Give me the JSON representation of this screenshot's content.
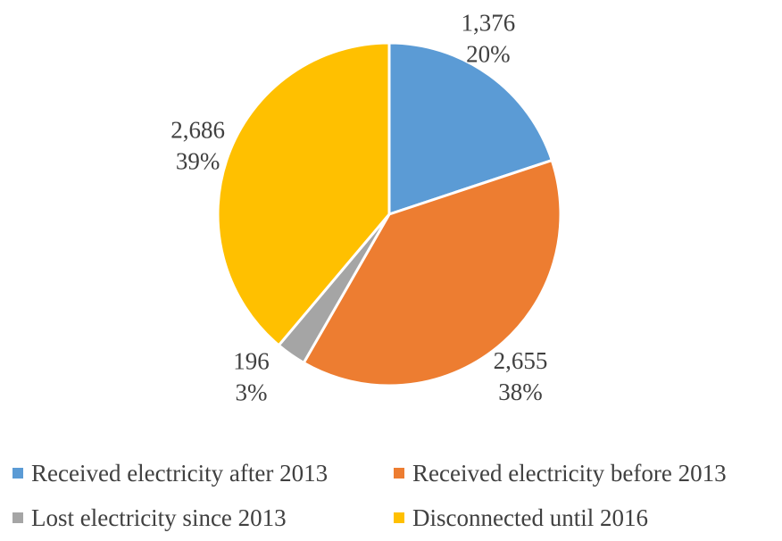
{
  "chart_data": {
    "type": "pie",
    "title": "",
    "slices": [
      {
        "name": "Received electricity after 2013",
        "value": 1376,
        "value_label": "1,376",
        "percent_label": "20%",
        "color": "#5B9BD5"
      },
      {
        "name": "Received electricity before 2013",
        "value": 2655,
        "value_label": "2,655",
        "percent_label": "38%",
        "color": "#ED7D31"
      },
      {
        "name": "Lost electricity since 2013",
        "value": 196,
        "value_label": "196",
        "percent_label": "3%",
        "color": "#A5A5A5"
      },
      {
        "name": "Disconnected until 2016",
        "value": 2686,
        "value_label": "2,686",
        "percent_label": "39%",
        "color": "#FFC000"
      }
    ],
    "legend_position": "bottom"
  }
}
